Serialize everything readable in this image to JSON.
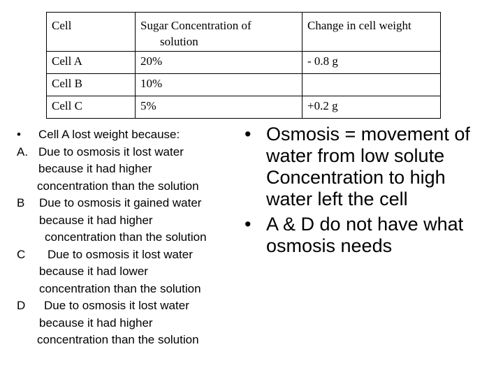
{
  "table": {
    "headers": [
      "Cell",
      "Sugar Concentration of",
      "solution",
      "Change in cell weight"
    ],
    "rows": [
      {
        "cell": "Cell A",
        "sugar": "20%",
        "change": "- 0.8 g"
      },
      {
        "cell": "Cell  B",
        "sugar": "10%",
        "change": ""
      },
      {
        "cell": "Cell C",
        "sugar": "5%",
        "change": "+0.2 g"
      }
    ]
  },
  "question": {
    "bullet": "•",
    "text": "Cell A lost weight because:",
    "options": [
      {
        "letter": "A.",
        "line1": "Due to osmosis it lost water",
        "line2": "because it had higher",
        "line3": "concentration than the solution"
      },
      {
        "letter": "B",
        "line1": "Due to osmosis it gained water",
        "line2": "because it had higher",
        "line3": "concentration than the solution"
      },
      {
        "letter": "C",
        "line1": "Due to osmosis it lost water",
        "line2": "because it had lower",
        "line3": "concentration than the solution"
      },
      {
        "letter": "D",
        "line1": "Due to osmosis it lost water",
        "line2": "because it had higher",
        "line3": "concentration than the solution"
      }
    ]
  },
  "notes": [
    {
      "bullet": "•",
      "lines": [
        "Osmosis = movement of",
        "water from low solute",
        "Concentration to high",
        "water left the cell"
      ]
    },
    {
      "bullet": "•",
      "lines": [
        "A & D do not have what",
        "osmosis needs"
      ]
    }
  ]
}
